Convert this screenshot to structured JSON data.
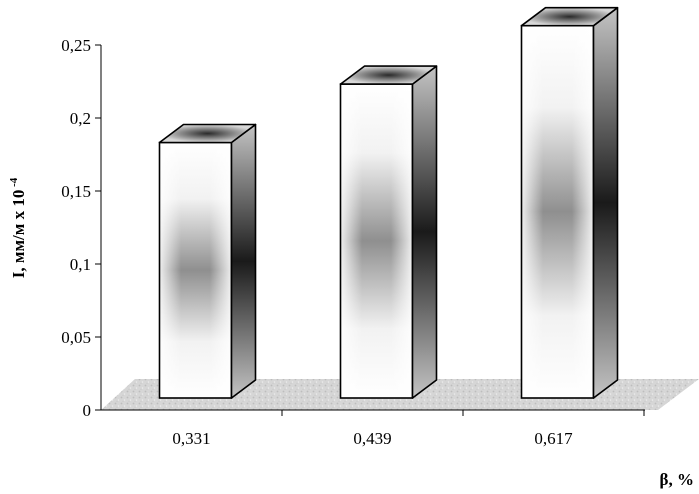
{
  "chart_data": {
    "type": "bar",
    "categories": [
      "0,331",
      "0,439",
      "0,617"
    ],
    "values": [
      0.175,
      0.215,
      0.255
    ],
    "ylim": [
      0,
      0.25
    ],
    "yticks": [
      "0",
      "0,05",
      "0,1",
      "0,15",
      "0,2",
      "0,25"
    ],
    "ylabel": "I, мм/м х 10",
    "ylabel_exponent": "-4",
    "xlabel": "β, %",
    "grid": false,
    "legend": "none",
    "style": "3d-column",
    "colors": {
      "bar_light": "#ffffff",
      "bar_mid": "#8c8c8c",
      "bar_side_dark": "#1c1c1c",
      "bar_side_light": "#bdbdbd",
      "floor": "#d4d4d4",
      "stroke": "#000000"
    }
  }
}
